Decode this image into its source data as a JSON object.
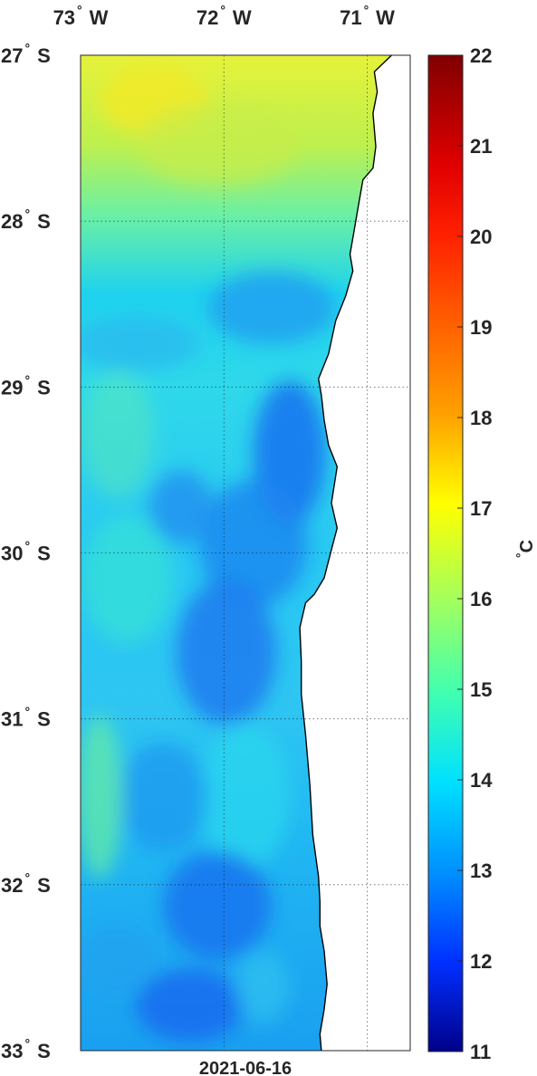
{
  "map": {
    "date": "2021-06-16",
    "lon_ticks": [
      {
        "deg": "73",
        "hemi": "W"
      },
      {
        "deg": "72",
        "hemi": "W"
      },
      {
        "deg": "71",
        "hemi": "W"
      }
    ],
    "lat_ticks": [
      {
        "deg": "27",
        "hemi": "S"
      },
      {
        "deg": "28",
        "hemi": "S"
      },
      {
        "deg": "29",
        "hemi": "S"
      },
      {
        "deg": "30",
        "hemi": "S"
      },
      {
        "deg": "31",
        "hemi": "S"
      },
      {
        "deg": "32",
        "hemi": "S"
      },
      {
        "deg": "33",
        "hemi": "S"
      }
    ],
    "degree_symbol": "°",
    "extent": {
      "lon_min": -73,
      "lon_max": -70.7,
      "lat_min": -33,
      "lat_max": -27
    },
    "grid": true,
    "land_color": "#ffffff",
    "coastline_color": "#000000"
  },
  "colorbar": {
    "unit": "C",
    "unit_degree": "°",
    "ticks": [
      "22",
      "21",
      "20",
      "19",
      "18",
      "17",
      "16",
      "15",
      "14",
      "13",
      "12",
      "11"
    ],
    "min": 11,
    "max": 22,
    "colormap": "jet",
    "placement": "right"
  }
}
